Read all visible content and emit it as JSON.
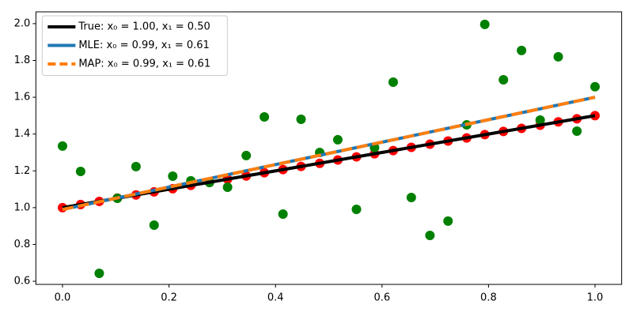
{
  "chart_data": {
    "type": "line",
    "legend": "upper left",
    "grid": false,
    "xlim": [
      -0.05,
      1.05
    ],
    "ylim": [
      0.583,
      2.064
    ],
    "xticks": [
      {
        "value": 0,
        "label": "0.0"
      },
      0.2,
      0.4,
      0.6,
      0.8,
      {
        "value": 1,
        "label": "1.0"
      }
    ],
    "yticks": [
      0.6,
      0.8,
      {
        "value": 1,
        "label": "1.0"
      },
      1.2,
      1.4,
      1.6,
      1.8,
      {
        "value": 2,
        "label": "2.0"
      }
    ],
    "series": [
      {
        "type": "scatter",
        "color": "#ff0000",
        "x": [
          0,
          0.034,
          0.069,
          0.103,
          0.138,
          0.172,
          0.207,
          0.241,
          0.276,
          0.31,
          0.345,
          0.379,
          0.414,
          0.448,
          0.483,
          0.517,
          0.552,
          0.586,
          0.621,
          0.655,
          0.69,
          0.724,
          0.759,
          0.793,
          0.828,
          0.862,
          0.897,
          0.931,
          0.966,
          1
        ],
        "values": [
          1,
          1.017,
          1.034,
          1.052,
          1.069,
          1.086,
          1.103,
          1.121,
          1.138,
          1.155,
          1.172,
          1.19,
          1.207,
          1.224,
          1.241,
          1.259,
          1.276,
          1.293,
          1.31,
          1.328,
          1.345,
          1.362,
          1.379,
          1.397,
          1.414,
          1.431,
          1.448,
          1.466,
          1.483,
          1.5
        ]
      },
      {
        "type": "scatter",
        "color": "#008000",
        "x": [
          0,
          0.034,
          0.069,
          0.103,
          0.138,
          0.172,
          0.207,
          0.241,
          0.276,
          0.31,
          0.345,
          0.379,
          0.414,
          0.448,
          0.483,
          0.517,
          0.552,
          0.586,
          0.621,
          0.655,
          0.69,
          0.724,
          0.759,
          0.793,
          0.828,
          0.862,
          0.897,
          0.931,
          0.966,
          1
        ],
        "values": [
          1.335,
          1.197,
          0.643,
          1.051,
          1.223,
          0.905,
          1.171,
          1.146,
          1.137,
          1.111,
          1.283,
          1.493,
          0.965,
          1.48,
          1.3,
          1.369,
          0.991,
          1.326,
          1.682,
          1.055,
          0.849,
          0.927,
          1.45,
          1.996,
          1.695,
          1.854,
          1.476,
          1.82,
          1.416,
          1.657
        ]
      },
      {
        "type": "line",
        "name": "True: x₀ = 1.00, x₁ = 0.50",
        "color": "#000000",
        "x": [
          0,
          1
        ],
        "values": [
          1.0,
          1.5
        ]
      },
      {
        "type": "line",
        "name": "MLE: x₀ = 0.99, x₁ = 0.61",
        "color": "#1f77b4",
        "x": [
          0,
          1
        ],
        "values": [
          0.99,
          1.6
        ]
      },
      {
        "type": "line",
        "name": "MAP: x₀ = 0.99, x₁ = 0.61",
        "color": "#ff7f0e",
        "dashed": true,
        "x": [
          0,
          1
        ],
        "values": [
          0.99,
          1.6
        ]
      }
    ]
  }
}
